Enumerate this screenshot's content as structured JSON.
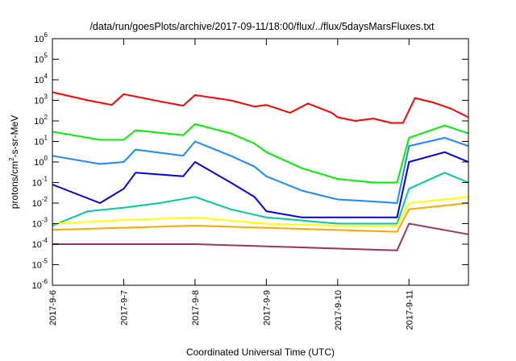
{
  "chart_data": {
    "type": "line",
    "title": "/data/run/goesPlots/archive/2017-09-11/18:00/flux/../flux/5daysMarsFluxes.txt",
    "xlabel": "Coordinated Universal Time (UTC)",
    "ylabel": "protons/cm2-s-sr-MeV",
    "ylabel_parts": {
      "base": "protons/cm",
      "sup": "2",
      "rest": "-s-sr-MeV"
    },
    "y_scale": "log",
    "ylim": [
      1e-06,
      1000000.0
    ],
    "xlim": [
      "2017-09-06 00:00",
      "2017-09-11 20:00"
    ],
    "grid": false,
    "legend": "none",
    "y_ticks": [
      {
        "exp": "-6",
        "value": 1e-06
      },
      {
        "exp": "-5",
        "value": 1e-05
      },
      {
        "exp": "-4",
        "value": 0.0001
      },
      {
        "exp": "-3",
        "value": 0.001
      },
      {
        "exp": "-2",
        "value": 0.01
      },
      {
        "exp": "-1",
        "value": 0.1
      },
      {
        "exp": "0",
        "value": 1
      },
      {
        "exp": "1",
        "value": 10
      },
      {
        "exp": "2",
        "value": 100
      },
      {
        "exp": "3",
        "value": 1000
      },
      {
        "exp": "4",
        "value": 10000
      },
      {
        "exp": "5",
        "value": 100000
      },
      {
        "exp": "6",
        "value": 1000000
      }
    ],
    "y_tick_base": "10",
    "x_ticks": [
      {
        "label": "2017-9-6",
        "value": "2017-09-06 00:00"
      },
      {
        "label": "2017-9-7",
        "value": "2017-09-07 00:00"
      },
      {
        "label": "2017-9-8",
        "value": "2017-09-08 00:00"
      },
      {
        "label": "2017-9-9",
        "value": "2017-09-09 00:00"
      },
      {
        "label": "2017-9-10",
        "value": "2017-09-10 00:00"
      },
      {
        "label": "2017-9-11",
        "value": "2017-09-11 00:00"
      }
    ],
    "series": [
      {
        "color": "#ff0000",
        "points": [
          [
            "2017-09-06 00:00",
            2500
          ],
          [
            "2017-09-06 12:00",
            1000
          ],
          [
            "2017-09-06 20:00",
            600
          ],
          [
            "2017-09-07 00:00",
            2000
          ],
          [
            "2017-09-07 12:00",
            900
          ],
          [
            "2017-09-07 20:00",
            550
          ],
          [
            "2017-09-08 00:00",
            1800
          ],
          [
            "2017-09-08 12:00",
            1000
          ],
          [
            "2017-09-08 20:00",
            500
          ],
          [
            "2017-09-09 00:00",
            600
          ],
          [
            "2017-09-09 08:00",
            250
          ],
          [
            "2017-09-09 14:00",
            700
          ],
          [
            "2017-09-09 22:00",
            250
          ],
          [
            "2017-09-10 00:00",
            150
          ],
          [
            "2017-09-10 06:00",
            100
          ],
          [
            "2017-09-10 12:00",
            130
          ],
          [
            "2017-09-10 18:00",
            80
          ],
          [
            "2017-09-10 22:00",
            80
          ],
          [
            "2017-09-11 02:00",
            1300
          ],
          [
            "2017-09-11 08:00",
            800
          ],
          [
            "2017-09-11 14:00",
            400
          ],
          [
            "2017-09-11 20:00",
            150
          ]
        ]
      },
      {
        "color": "#00ee00",
        "points": [
          [
            "2017-09-06 00:00",
            30
          ],
          [
            "2017-09-06 16:00",
            12
          ],
          [
            "2017-09-07 00:00",
            12
          ],
          [
            "2017-09-07 04:00",
            35
          ],
          [
            "2017-09-07 20:00",
            20
          ],
          [
            "2017-09-08 00:00",
            70
          ],
          [
            "2017-09-08 12:00",
            25
          ],
          [
            "2017-09-08 20:00",
            8
          ],
          [
            "2017-09-09 00:00",
            3
          ],
          [
            "2017-09-09 12:00",
            0.5
          ],
          [
            "2017-09-10 00:00",
            0.15
          ],
          [
            "2017-09-10 12:00",
            0.1
          ],
          [
            "2017-09-10 20:00",
            0.1
          ],
          [
            "2017-09-11 00:00",
            15
          ],
          [
            "2017-09-11 12:00",
            60
          ],
          [
            "2017-09-11 20:00",
            25
          ]
        ]
      },
      {
        "color": "#1e88ff",
        "points": [
          [
            "2017-09-06 00:00",
            2
          ],
          [
            "2017-09-06 16:00",
            0.8
          ],
          [
            "2017-09-07 00:00",
            1
          ],
          [
            "2017-09-07 04:00",
            4
          ],
          [
            "2017-09-07 20:00",
            2
          ],
          [
            "2017-09-08 00:00",
            10
          ],
          [
            "2017-09-08 12:00",
            2
          ],
          [
            "2017-09-08 20:00",
            0.6
          ],
          [
            "2017-09-09 00:00",
            0.2
          ],
          [
            "2017-09-09 12:00",
            0.04
          ],
          [
            "2017-09-10 00:00",
            0.015
          ],
          [
            "2017-09-10 12:00",
            0.012
          ],
          [
            "2017-09-10 20:00",
            0.01
          ],
          [
            "2017-09-11 00:00",
            6
          ],
          [
            "2017-09-11 12:00",
            15
          ],
          [
            "2017-09-11 20:00",
            6
          ]
        ]
      },
      {
        "color": "#0000ee",
        "points": [
          [
            "2017-09-06 00:00",
            0.08
          ],
          [
            "2017-09-06 16:00",
            0.01
          ],
          [
            "2017-09-07 00:00",
            0.05
          ],
          [
            "2017-09-07 04:00",
            0.3
          ],
          [
            "2017-09-07 20:00",
            0.2
          ],
          [
            "2017-09-08 00:00",
            1
          ],
          [
            "2017-09-08 12:00",
            0.1
          ],
          [
            "2017-09-08 20:00",
            0.02
          ],
          [
            "2017-09-09 00:00",
            0.004
          ],
          [
            "2017-09-09 12:00",
            0.002
          ],
          [
            "2017-09-10 00:00",
            0.002
          ],
          [
            "2017-09-10 20:00",
            0.002
          ],
          [
            "2017-09-11 00:00",
            1
          ],
          [
            "2017-09-11 12:00",
            3
          ],
          [
            "2017-09-11 20:00",
            1
          ]
        ]
      },
      {
        "color": "#00c8a0",
        "points": [
          [
            "2017-09-06 00:00",
            0.0008
          ],
          [
            "2017-09-06 12:00",
            0.004
          ],
          [
            "2017-09-07 00:00",
            0.006
          ],
          [
            "2017-09-07 12:00",
            0.01
          ],
          [
            "2017-09-08 00:00",
            0.02
          ],
          [
            "2017-09-08 12:00",
            0.005
          ],
          [
            "2017-09-09 00:00",
            0.002
          ],
          [
            "2017-09-10 00:00",
            0.001
          ],
          [
            "2017-09-10 20:00",
            0.001
          ],
          [
            "2017-09-11 00:00",
            0.05
          ],
          [
            "2017-09-11 12:00",
            0.3
          ],
          [
            "2017-09-11 20:00",
            0.1
          ]
        ]
      },
      {
        "color": "#ffff00",
        "points": [
          [
            "2017-09-06 00:00",
            0.001
          ],
          [
            "2017-09-07 00:00",
            0.0015
          ],
          [
            "2017-09-08 00:00",
            0.002
          ],
          [
            "2017-09-09 00:00",
            0.001
          ],
          [
            "2017-09-10 00:00",
            0.0008
          ],
          [
            "2017-09-10 20:00",
            0.0008
          ],
          [
            "2017-09-11 00:00",
            0.01
          ],
          [
            "2017-09-11 20:00",
            0.02
          ]
        ]
      },
      {
        "color": "#ffa500",
        "points": [
          [
            "2017-09-06 00:00",
            0.0005
          ],
          [
            "2017-09-08 00:00",
            0.0008
          ],
          [
            "2017-09-10 20:00",
            0.0004
          ],
          [
            "2017-09-11 00:00",
            0.005
          ],
          [
            "2017-09-11 20:00",
            0.01
          ]
        ]
      },
      {
        "color": "#993366",
        "points": [
          [
            "2017-09-06 00:00",
            0.0001
          ],
          [
            "2017-09-08 00:00",
            0.0001
          ],
          [
            "2017-09-10 20:00",
            5e-05
          ],
          [
            "2017-09-11 00:00",
            0.001
          ],
          [
            "2017-09-11 20:00",
            0.0003
          ]
        ]
      }
    ]
  }
}
